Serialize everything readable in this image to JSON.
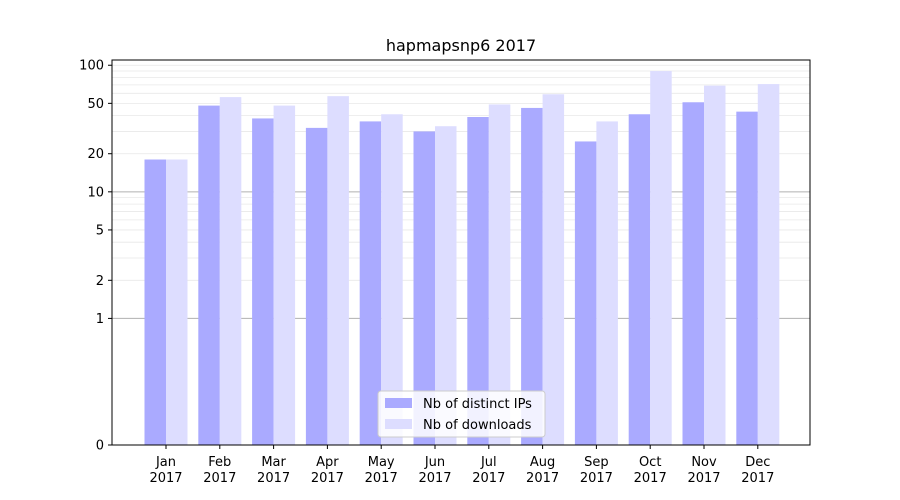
{
  "chart_data": {
    "type": "bar",
    "title": "hapmapsnp6 2017",
    "xlabel": "",
    "ylabel": "",
    "y_scale": "symlog",
    "ylim": [
      0,
      110
    ],
    "yticks": [
      0,
      1,
      2,
      5,
      10,
      20,
      50,
      100
    ],
    "grid": true,
    "legend_position": "lower-center",
    "categories": [
      {
        "month": "Jan",
        "year": "2017"
      },
      {
        "month": "Feb",
        "year": "2017"
      },
      {
        "month": "Mar",
        "year": "2017"
      },
      {
        "month": "Apr",
        "year": "2017"
      },
      {
        "month": "May",
        "year": "2017"
      },
      {
        "month": "Jun",
        "year": "2017"
      },
      {
        "month": "Jul",
        "year": "2017"
      },
      {
        "month": "Aug",
        "year": "2017"
      },
      {
        "month": "Sep",
        "year": "2017"
      },
      {
        "month": "Oct",
        "year": "2017"
      },
      {
        "month": "Nov",
        "year": "2017"
      },
      {
        "month": "Dec",
        "year": "2017"
      }
    ],
    "series": [
      {
        "name": "Nb of distinct IPs",
        "color": "#aaaaff",
        "values": [
          18,
          48,
          38,
          32,
          36,
          30,
          39,
          46,
          25,
          41,
          51,
          43
        ]
      },
      {
        "name": "Nb of downloads",
        "color": "#ddddff",
        "values": [
          18,
          56,
          48,
          57,
          41,
          33,
          49,
          59,
          36,
          90,
          69,
          71
        ]
      }
    ]
  }
}
